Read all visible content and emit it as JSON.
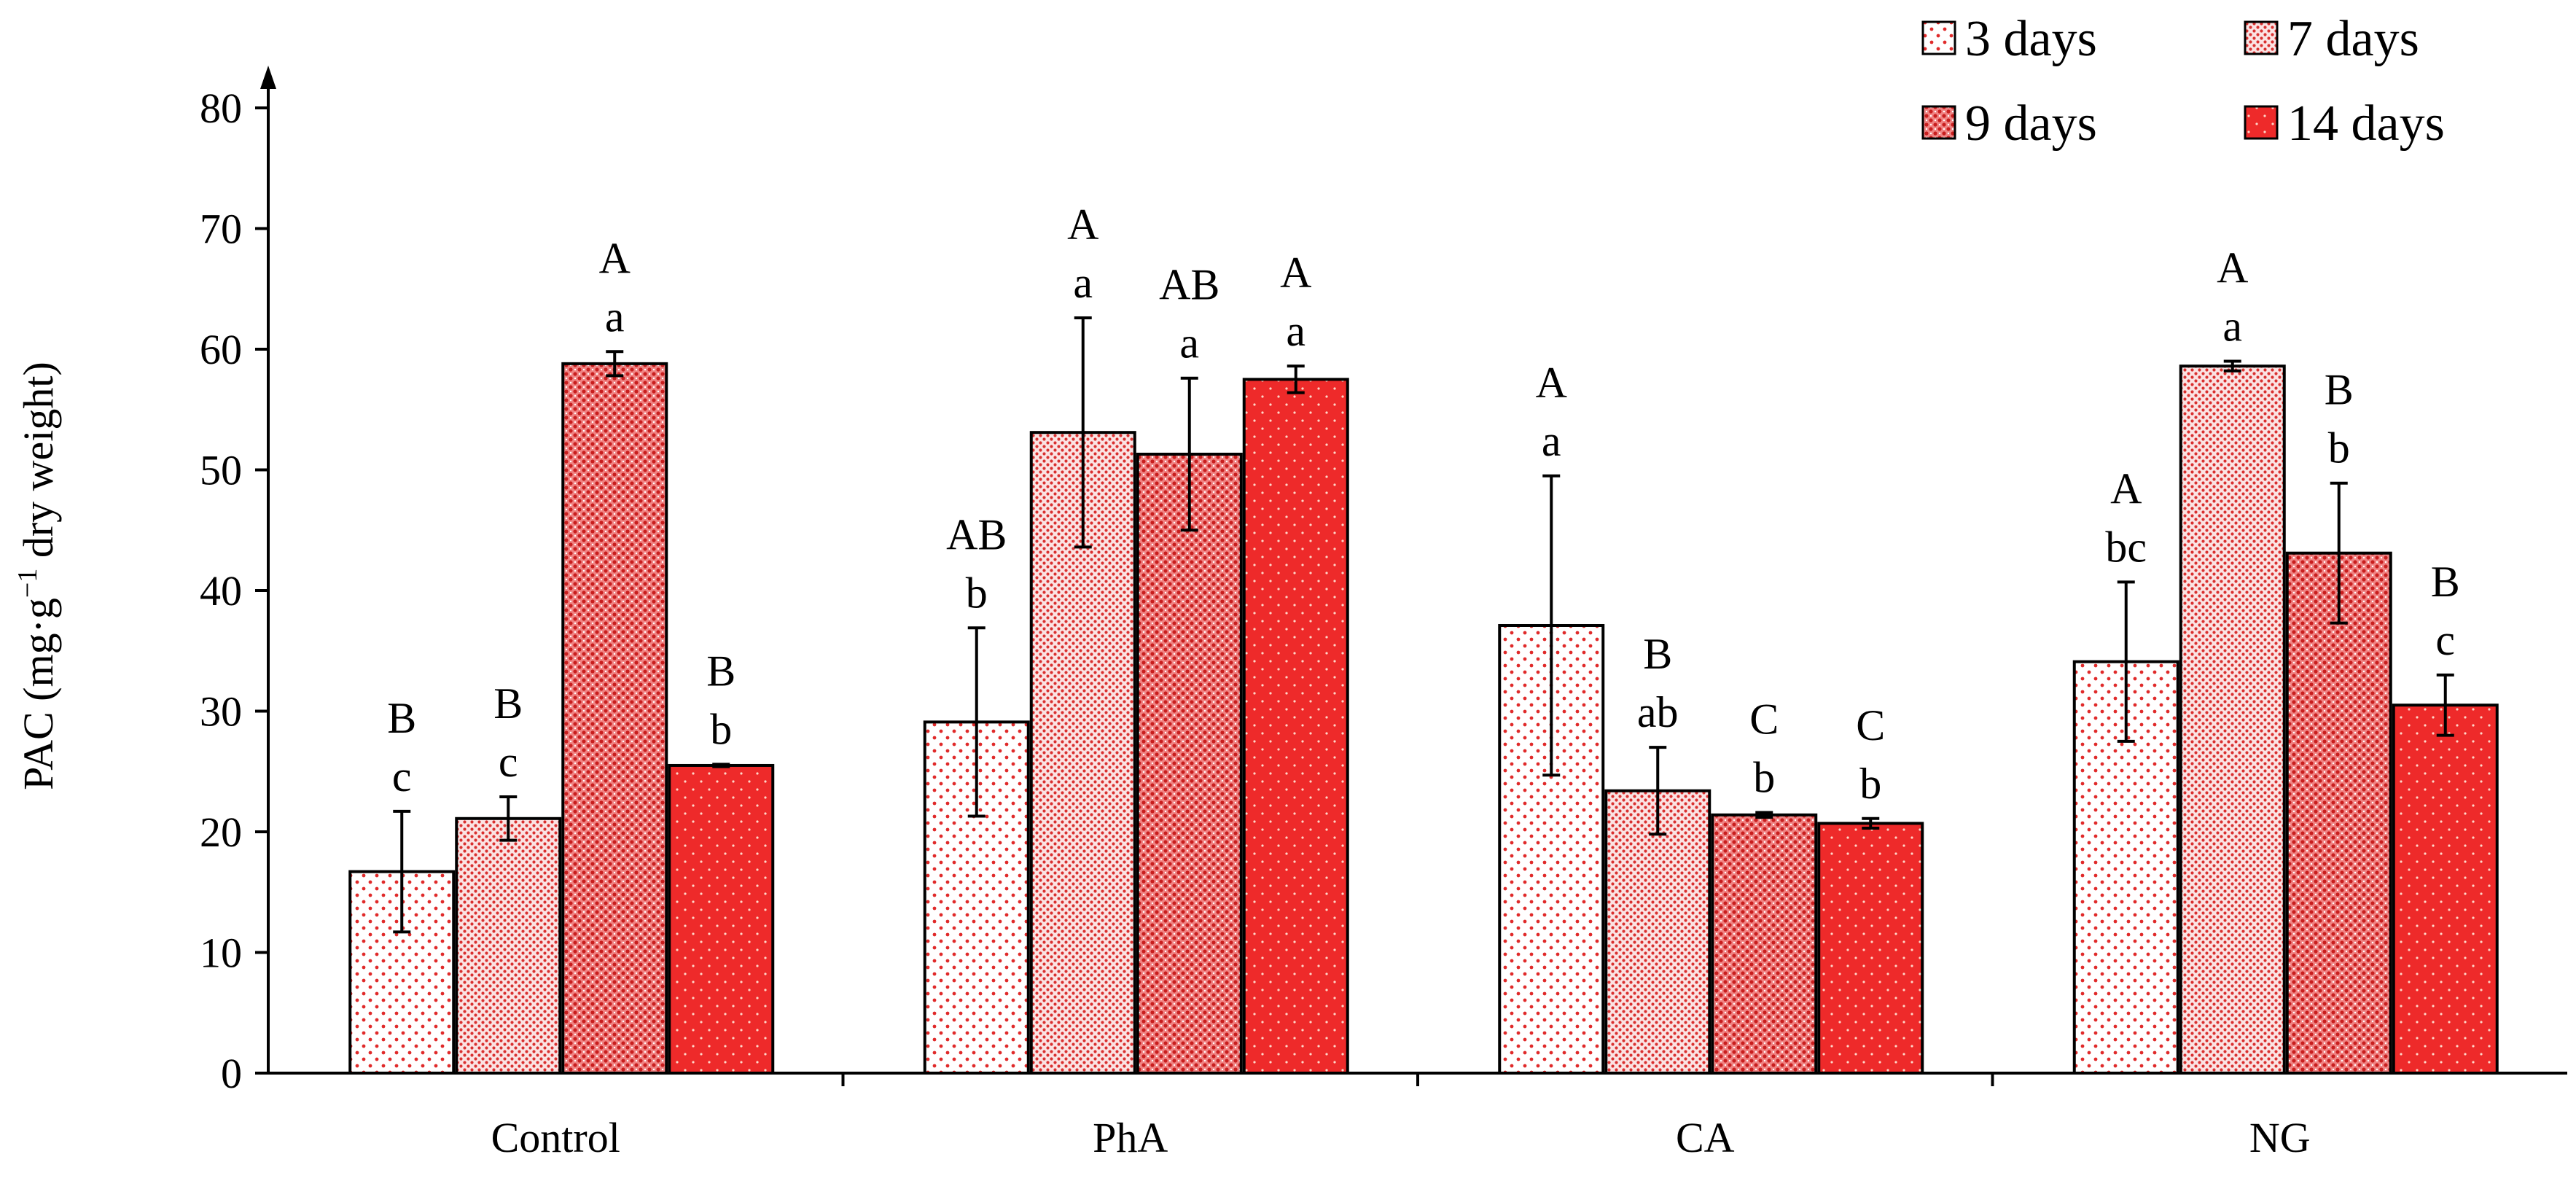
{
  "chart_data": {
    "type": "bar",
    "title": "",
    "xlabel": "",
    "ylabel_main": "PAC (mg·g",
    "ylabel_sup": "−1",
    "ylabel_tail": " dry weight)",
    "ylim": [
      0,
      80
    ],
    "yticks": [
      "0",
      "10",
      "20",
      "30",
      "40",
      "50",
      "60",
      "70",
      "80"
    ],
    "categories": [
      "Control",
      "PhA",
      "CA",
      "NG"
    ],
    "legend_position": "top-right",
    "series": [
      {
        "name": "3 days",
        "pattern": "sparse-dots",
        "values": [
          16.7,
          29.1,
          37.1,
          34.1
        ],
        "errors": [
          5.0,
          7.8,
          12.4,
          6.6
        ],
        "upper_letters": [
          "B",
          "AB",
          "A",
          "A"
        ],
        "lower_letters": [
          "c",
          "b",
          "a",
          "bc"
        ]
      },
      {
        "name": "7 days",
        "pattern": "medium-dots",
        "values": [
          21.1,
          53.1,
          23.4,
          58.6
        ],
        "errors": [
          1.8,
          9.5,
          3.6,
          0.4
        ],
        "upper_letters": [
          "B",
          "A",
          "B",
          "A"
        ],
        "lower_letters": [
          "c",
          "a",
          "ab",
          "a"
        ]
      },
      {
        "name": "9 days",
        "pattern": "dense-dots",
        "values": [
          58.8,
          51.3,
          21.4,
          43.1
        ],
        "errors": [
          1.0,
          6.3,
          0.2,
          5.8
        ],
        "upper_letters": [
          "A",
          "AB",
          "C",
          "B"
        ],
        "lower_letters": [
          "a",
          "a",
          "b",
          "b"
        ]
      },
      {
        "name": "14 days",
        "pattern": "solid-red",
        "values": [
          25.5,
          57.5,
          20.7,
          30.5
        ],
        "errors": [
          0.1,
          1.1,
          0.4,
          2.5
        ],
        "upper_letters": [
          "B",
          "A",
          "C",
          "B"
        ],
        "lower_letters": [
          "b",
          "a",
          "b",
          "c"
        ]
      }
    ]
  }
}
